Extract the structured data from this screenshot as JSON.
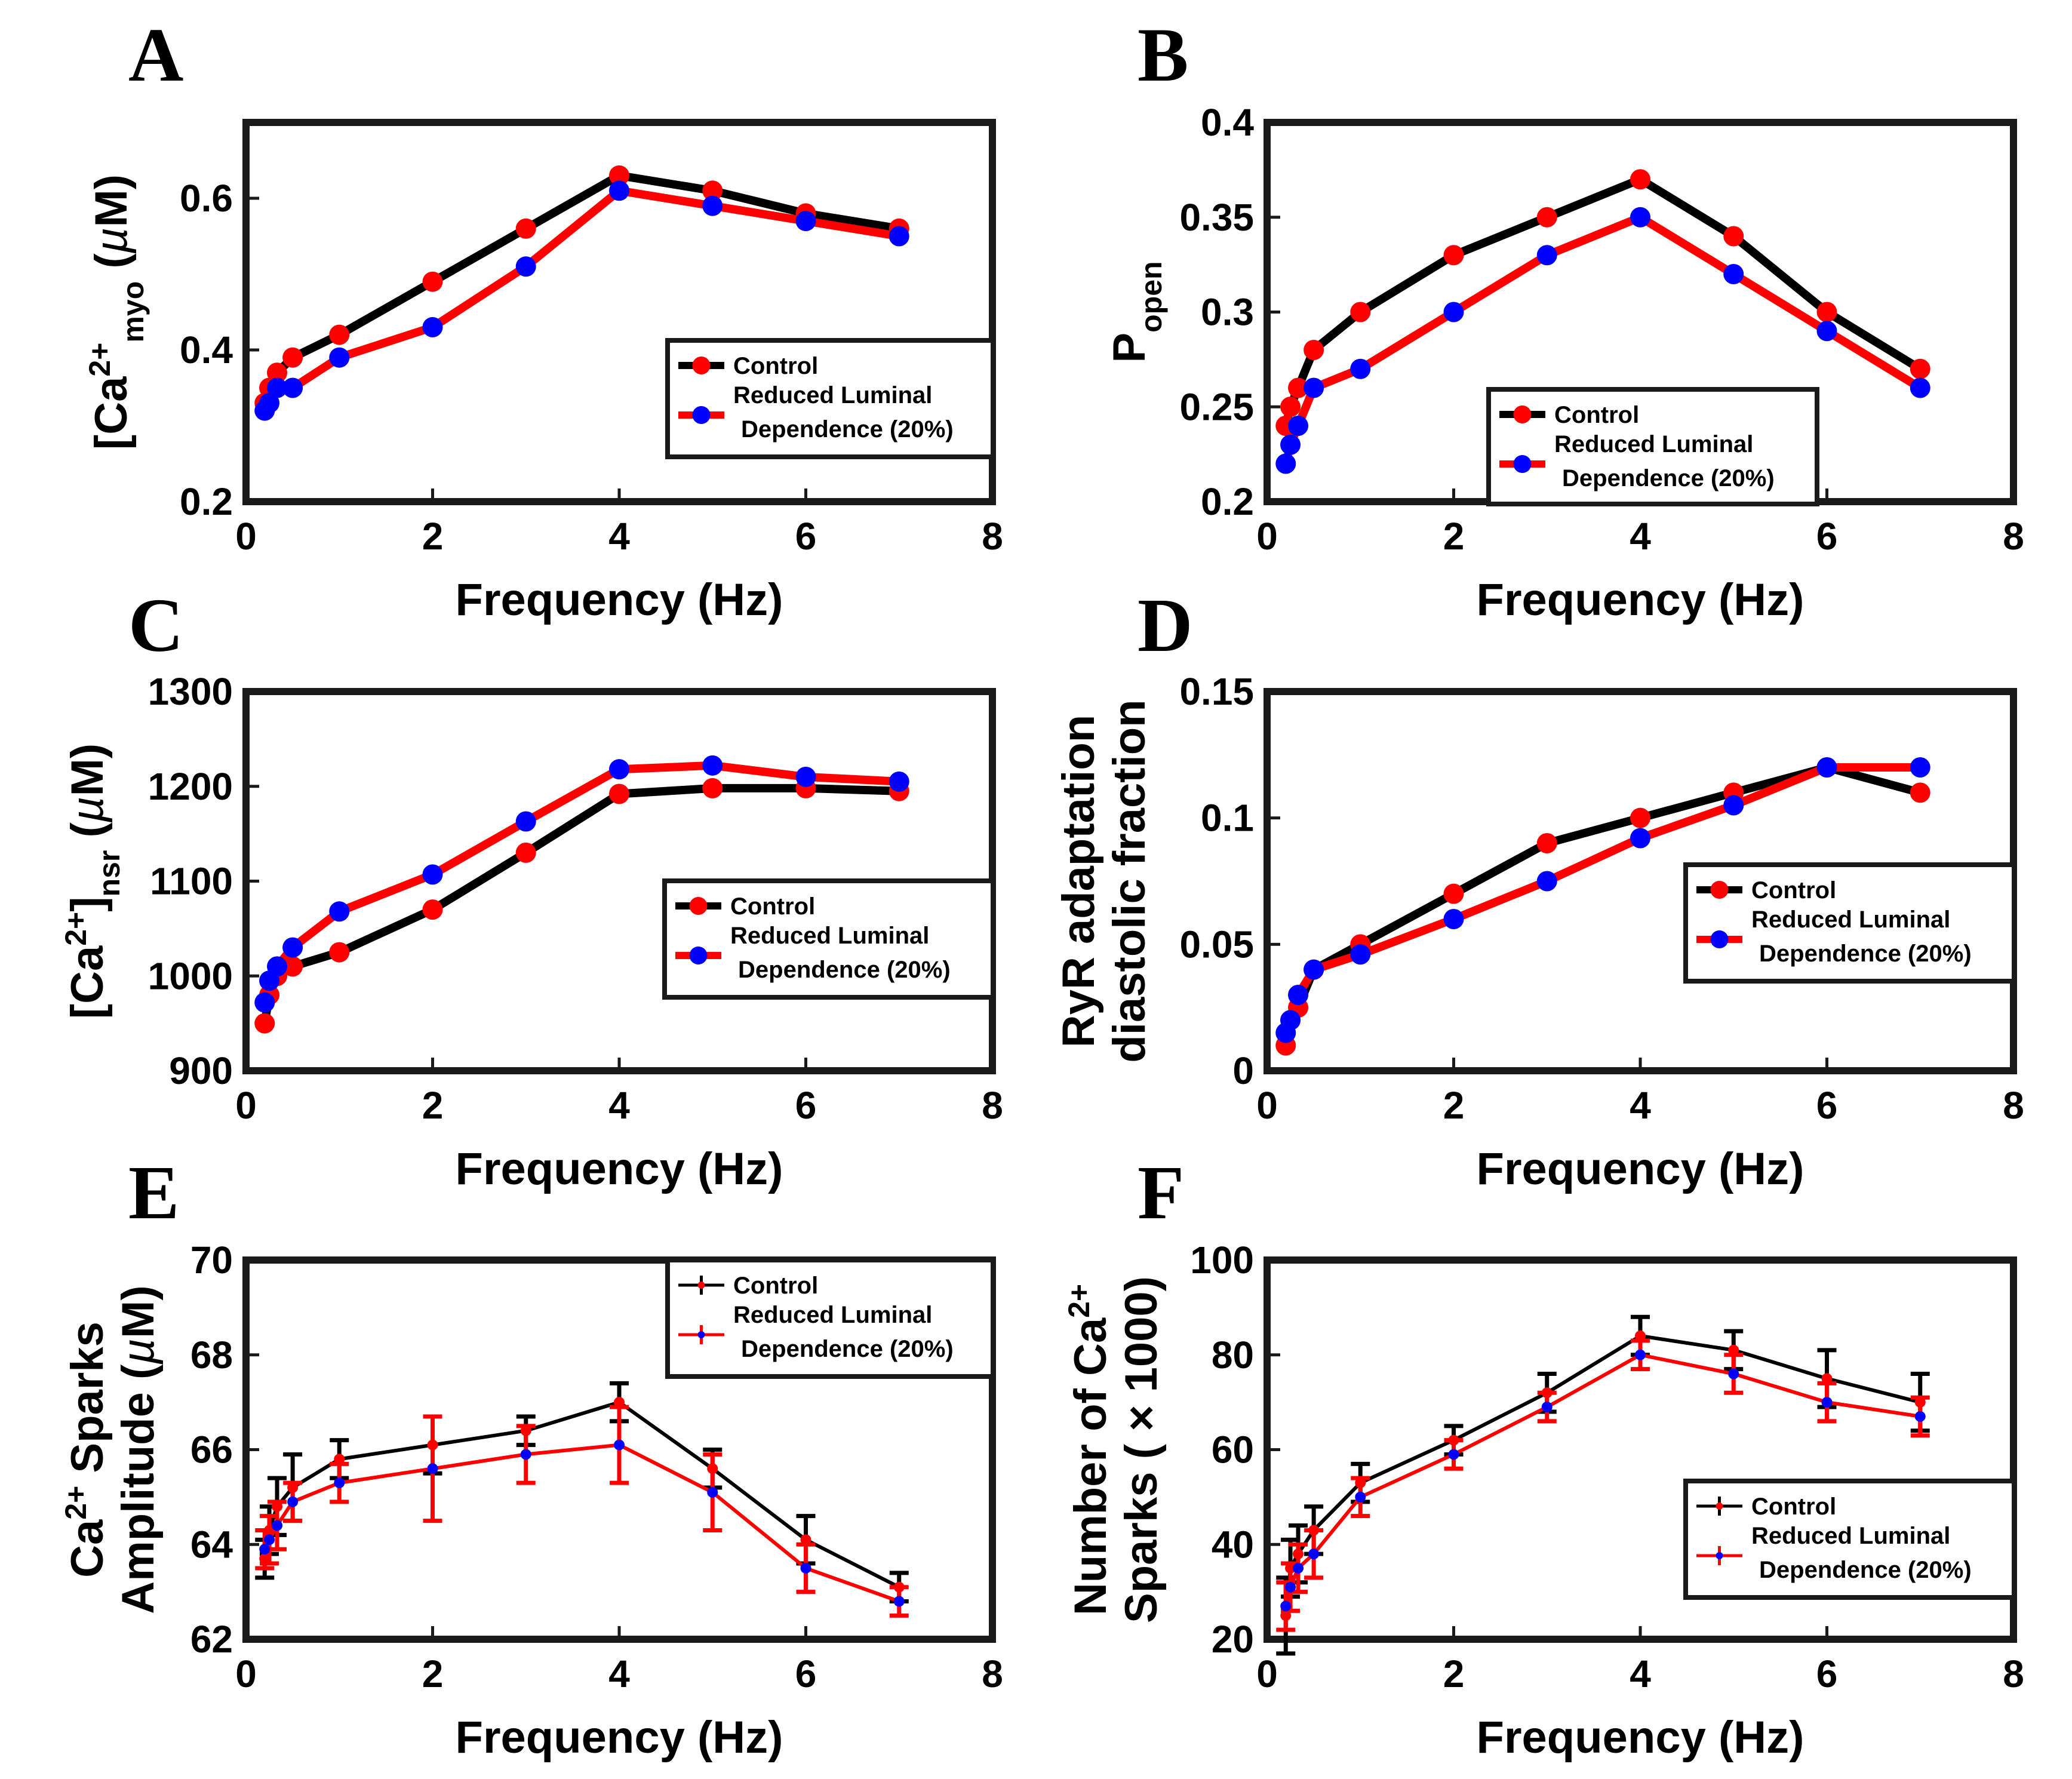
{
  "figure": {
    "colors": {
      "control": "#000000",
      "reduced": "#ff0000",
      "marker_alt": "#0000ff",
      "background": "#ffffff"
    },
    "legend": {
      "control": "Control",
      "reduced_line1": "Reduced Luminal",
      "reduced_line2": "Dependence (20%)"
    }
  },
  "chart_data": [
    {
      "id": "A",
      "type": "line",
      "panel_label": "A",
      "xlabel": "Frequency (Hz)",
      "ylabel_parts": [
        "[Ca",
        "2+",
        "myo",
        " (",
        "µ",
        "M)"
      ],
      "xlim": [
        0,
        8
      ],
      "ylim": [
        0.2,
        0.7
      ],
      "xticks": [
        0,
        2,
        4,
        6,
        8
      ],
      "yticks": [
        0.2,
        0.4,
        0.6
      ],
      "ytick_labels": [
        "0.2",
        "0.4",
        "0.6"
      ],
      "x": [
        0.2,
        0.25,
        0.333,
        0.5,
        1,
        2,
        3,
        4,
        5,
        6,
        7
      ],
      "legend_position": "right",
      "series": [
        {
          "name": "Control",
          "values": [
            0.33,
            0.35,
            0.37,
            0.39,
            0.42,
            0.49,
            0.56,
            0.63,
            0.61,
            0.58,
            0.56
          ]
        },
        {
          "name": "Reduced Luminal Dependence (20%)",
          "values": [
            0.32,
            0.33,
            0.35,
            0.35,
            0.39,
            0.43,
            0.51,
            0.61,
            0.59,
            0.57,
            0.55
          ]
        }
      ]
    },
    {
      "id": "B",
      "type": "line",
      "panel_label": "B",
      "xlabel": "Frequency (Hz)",
      "ylabel_parts": [
        "P",
        "open"
      ],
      "xlim": [
        0,
        8
      ],
      "ylim": [
        0.2,
        0.4
      ],
      "xticks": [
        0,
        2,
        4,
        6,
        8
      ],
      "yticks": [
        0.2,
        0.25,
        0.3,
        0.35,
        0.4
      ],
      "ytick_labels": [
        "0.2",
        "0.25",
        "0.3",
        "0.35",
        "0.4"
      ],
      "x": [
        0.2,
        0.25,
        0.333,
        0.5,
        1,
        2,
        3,
        4,
        5,
        6,
        7
      ],
      "legend_position": "bottom-right",
      "series": [
        {
          "name": "Control",
          "values": [
            0.24,
            0.25,
            0.26,
            0.28,
            0.3,
            0.33,
            0.35,
            0.37,
            0.34,
            0.3,
            0.27
          ]
        },
        {
          "name": "Reduced Luminal Dependence (20%)",
          "values": [
            0.22,
            0.23,
            0.24,
            0.26,
            0.27,
            0.3,
            0.33,
            0.35,
            0.32,
            0.29,
            0.26
          ]
        }
      ]
    },
    {
      "id": "C",
      "type": "line",
      "panel_label": "C",
      "xlabel": "Frequency (Hz)",
      "ylabel_parts": [
        "[Ca",
        "2+",
        "]",
        "nsr",
        " (",
        "µ",
        "M)"
      ],
      "xlim": [
        0,
        8
      ],
      "ylim": [
        900,
        1300
      ],
      "xticks": [
        0,
        2,
        4,
        6,
        8
      ],
      "yticks": [
        900,
        1000,
        1100,
        1200,
        1300
      ],
      "ytick_labels": [
        "900",
        "1000",
        "1100",
        "1200",
        "1300"
      ],
      "x": [
        0.2,
        0.25,
        0.333,
        0.5,
        1,
        2,
        3,
        4,
        5,
        6,
        7
      ],
      "legend_position": "right",
      "series": [
        {
          "name": "Control",
          "values": [
            950,
            980,
            1000,
            1010,
            1025,
            1070,
            1130,
            1192,
            1198,
            1198,
            1195
          ]
        },
        {
          "name": "Reduced Luminal Dependence (20%)",
          "values": [
            972,
            995,
            1010,
            1030,
            1068,
            1107,
            1163,
            1218,
            1222,
            1210,
            1205
          ]
        }
      ]
    },
    {
      "id": "D",
      "type": "line",
      "panel_label": "D",
      "xlabel": "Frequency (Hz)",
      "ylabel_lines": [
        "RyR adaptation",
        "diastolic fraction"
      ],
      "xlim": [
        0,
        8
      ],
      "ylim": [
        0,
        0.15
      ],
      "xticks": [
        0,
        2,
        4,
        6,
        8
      ],
      "yticks": [
        0,
        0.05,
        0.1,
        0.15
      ],
      "ytick_labels": [
        "0",
        "0.05",
        "0.1",
        "0.15"
      ],
      "x": [
        0.2,
        0.25,
        0.333,
        0.5,
        1,
        2,
        3,
        4,
        5,
        6,
        7
      ],
      "legend_position": "right",
      "series": [
        {
          "name": "Control",
          "values": [
            0.01,
            0.02,
            0.025,
            0.04,
            0.05,
            0.07,
            0.09,
            0.1,
            0.11,
            0.12,
            0.11
          ]
        },
        {
          "name": "Reduced Luminal Dependence (20%)",
          "values": [
            0.015,
            0.02,
            0.03,
            0.04,
            0.046,
            0.06,
            0.075,
            0.092,
            0.105,
            0.12,
            0.12
          ]
        }
      ]
    },
    {
      "id": "E",
      "type": "line",
      "panel_label": "E",
      "xlabel": "Frequency (Hz)",
      "ylabel_line1_parts": [
        "Ca",
        "2+",
        " Sparks"
      ],
      "ylabel_line2_parts": [
        "Amplitude (",
        "µ",
        "M)"
      ],
      "xlim": [
        0,
        8
      ],
      "ylim": [
        62,
        70
      ],
      "xticks": [
        0,
        2,
        4,
        6,
        8
      ],
      "yticks": [
        62,
        64,
        66,
        68,
        70
      ],
      "ytick_labels": [
        "62",
        "64",
        "66",
        "68",
        "70"
      ],
      "x": [
        0.2,
        0.25,
        0.333,
        0.5,
        1,
        2,
        3,
        4,
        5,
        6,
        7
      ],
      "legend_position": "top-right",
      "series": [
        {
          "name": "Control",
          "values": [
            63.7,
            64.3,
            64.8,
            65.2,
            65.8,
            66.1,
            66.4,
            67.0,
            65.6,
            64.1,
            63.1
          ],
          "errors": [
            0.4,
            0.5,
            0.6,
            0.7,
            0.4,
            0.6,
            0.3,
            0.4,
            0.4,
            0.5,
            0.3
          ]
        },
        {
          "name": "Reduced Luminal Dependence (20%)",
          "values": [
            63.9,
            64.1,
            64.4,
            64.9,
            65.3,
            65.6,
            65.9,
            66.1,
            65.1,
            63.5,
            62.8
          ],
          "errors": [
            0.4,
            0.5,
            0.5,
            0.4,
            0.4,
            1.1,
            0.6,
            0.8,
            0.8,
            0.5,
            0.3
          ]
        }
      ]
    },
    {
      "id": "F",
      "type": "line",
      "panel_label": "F",
      "xlabel": "Frequency (Hz)",
      "ylabel_line1_parts": [
        "Number of Ca",
        "2+"
      ],
      "ylabel_line2_parts": [
        "Sparks ( ",
        "×",
        " 1000)"
      ],
      "xlim": [
        0,
        8
      ],
      "ylim": [
        20,
        100
      ],
      "xticks": [
        0,
        2,
        4,
        6,
        8
      ],
      "yticks": [
        20,
        40,
        60,
        80,
        100
      ],
      "ytick_labels": [
        "20",
        "40",
        "60",
        "80",
        "100"
      ],
      "x": [
        0.2,
        0.25,
        0.333,
        0.5,
        1,
        2,
        3,
        4,
        5,
        6,
        7
      ],
      "legend_position": "bottom-right",
      "series": [
        {
          "name": "Control",
          "values": [
            25,
            35,
            38,
            43,
            53,
            62,
            72,
            84,
            81,
            75,
            70
          ],
          "errors": [
            8,
            6,
            6,
            5,
            4,
            3,
            4,
            4,
            4,
            6,
            6
          ]
        },
        {
          "name": "Reduced Luminal Dependence (20%)",
          "values": [
            27,
            31,
            35,
            38,
            50,
            59,
            69,
            80,
            76,
            70,
            67
          ],
          "errors": [
            5,
            5,
            5,
            5,
            4,
            3,
            3,
            3,
            4,
            4,
            4
          ]
        }
      ]
    }
  ]
}
